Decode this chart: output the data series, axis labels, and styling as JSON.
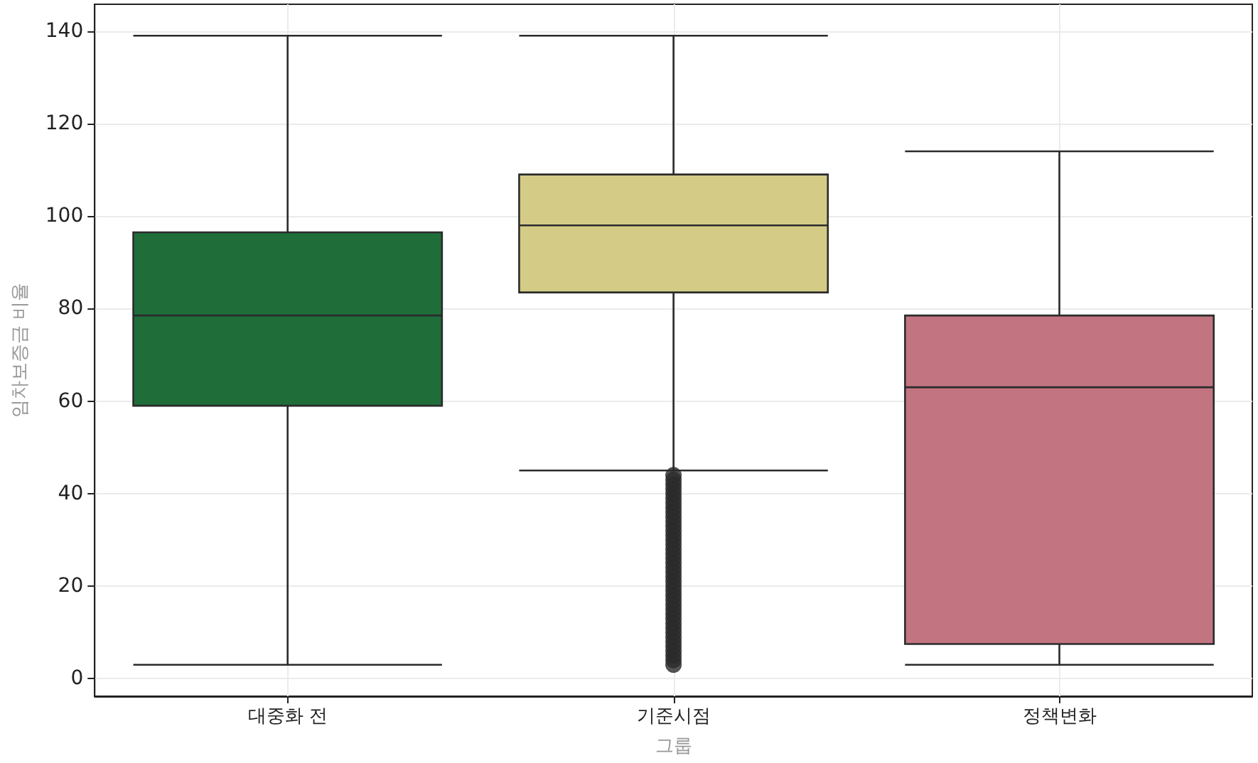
{
  "chart_data": {
    "type": "box",
    "xlabel": "그룹",
    "ylabel": "임차보증금 비율",
    "categories": [
      "대중화 전",
      "기준시점",
      "정책변화"
    ],
    "boxes": [
      {
        "low": 3,
        "q1": 59,
        "median": 78.5,
        "q3": 96.5,
        "high": 139
      },
      {
        "low": 45,
        "q1": 83.5,
        "median": 98,
        "q3": 109,
        "high": 139,
        "outliers": [
          3,
          4,
          5,
          6,
          7,
          8,
          9,
          10,
          11,
          12,
          13,
          14,
          15,
          16,
          17,
          18,
          19,
          20,
          21,
          22,
          23,
          24,
          25,
          26,
          27,
          28,
          29,
          30,
          31,
          32,
          33,
          34,
          35,
          36,
          37,
          38,
          39,
          40,
          41,
          42,
          43,
          44
        ]
      },
      {
        "low": 3,
        "q1": 7.5,
        "median": 63,
        "q3": 78.5,
        "high": 114
      }
    ],
    "colors": [
      "#1f6e3a",
      "#d4cb87",
      "#c27580"
    ],
    "ylim": [
      -3.8,
      145.8
    ],
    "yticks": [
      0,
      20,
      40,
      60,
      80,
      100,
      120,
      140
    ],
    "grid": true,
    "marker": "circle"
  }
}
